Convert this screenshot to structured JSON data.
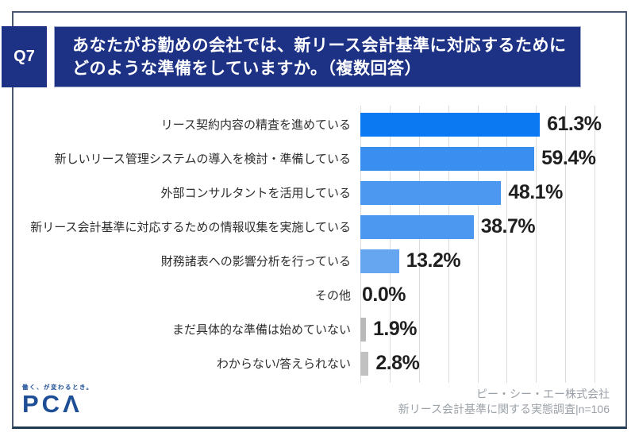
{
  "header": {
    "question_number": "Q7",
    "title_lines": [
      "あなたがお勤めの会社では、新リース会計基準に対応するために",
      "どのような準備をしていますか。（複数回答）"
    ]
  },
  "chart_data": {
    "type": "bar",
    "orientation": "horizontal",
    "unit": "percent",
    "categories": [
      "リース契約内容の精査を進めている",
      "新しいリース管理システムの導入を検討・準備している",
      "外部コンサルタントを活用している",
      "新リース会計基準に対応するための情報収集を実施している",
      "財務諸表への影響分析を行っている",
      "その他",
      "まだ具体的な準備は始めていない",
      "わからない/答えられない"
    ],
    "values": [
      61.3,
      59.4,
      48.1,
      38.7,
      13.2,
      0.0,
      1.9,
      2.8
    ],
    "value_labels": [
      "61.3%",
      "59.4%",
      "48.1%",
      "38.7%",
      "13.2%",
      "0.0%",
      "1.9%",
      "2.8%"
    ],
    "bar_colors": [
      "#0b7af2",
      "#3a8ef0",
      "#4c98f0",
      "#4c98f0",
      "#66a6f0",
      null,
      "#b9b9b9",
      "#c1c1c1"
    ],
    "xlim": [
      0,
      90
    ],
    "gridline_step": 10,
    "grid": true,
    "legend": false,
    "title": "あなたがお勤めの会社では、新リース会計基準に対応するためにどのような準備をしていますか。（複数回答）"
  },
  "footer": {
    "logo_tagline": "働く、が変わるとき。",
    "logo_wordmark": "PCΛ",
    "source_lines": [
      "ピー・シー・エー株式会社",
      "新リース会計基準に関する実態調査|n=106"
    ]
  },
  "colors": {
    "header_navy": "#1d3185",
    "frame_border": "#4a5871",
    "frame_bottom": "#1e3a50",
    "gridline": "#dcdcdc",
    "value_text": "#1f1f1f",
    "category_text": "#2e2e2e",
    "source_text": "#9ba1a8",
    "logo_blue": "#1e4f96"
  }
}
